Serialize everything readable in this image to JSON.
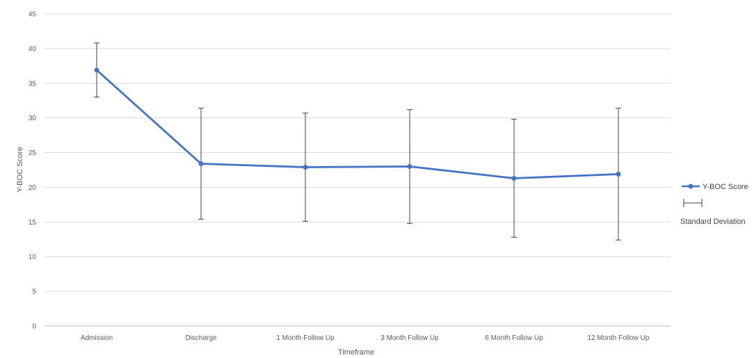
{
  "chart_data": {
    "type": "line",
    "title": "",
    "xlabel": "Timeframe",
    "ylabel": "Y-BOC Score",
    "ylim": [
      0,
      45
    ],
    "yticks": [
      0,
      5,
      10,
      15,
      20,
      25,
      30,
      35,
      40,
      45
    ],
    "grid": true,
    "legend_position": "right",
    "categories": [
      "Admission",
      "Discharge",
      "1 Month Follow Up",
      "3 Month Follow Up",
      "6 Month Follow Up",
      "12 Month Follow Up"
    ],
    "series": [
      {
        "name": "Y-BOC Score",
        "color": "#4472c4",
        "values": [
          36.9,
          23.4,
          22.9,
          23.0,
          21.3,
          21.9
        ],
        "error_lower": [
          33.0,
          15.4,
          15.1,
          14.8,
          12.8,
          12.4
        ],
        "error_upper": [
          40.8,
          31.4,
          30.7,
          31.2,
          29.8,
          31.4
        ]
      }
    ],
    "legend": {
      "series_label": "Y-BOC Score",
      "error_label": "Standard Deviation"
    }
  }
}
